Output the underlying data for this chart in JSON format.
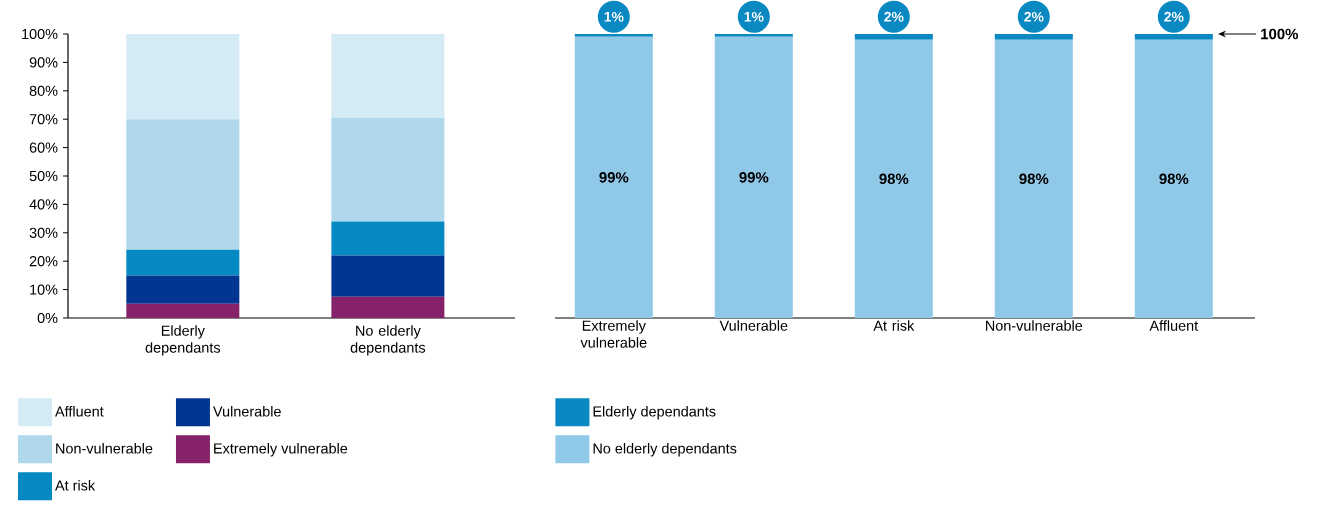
{
  "chart_data": [
    {
      "type": "bar",
      "stacked": true,
      "legend": "bottom",
      "categories": [
        "Elderly dependants",
        "No elderly dependants"
      ],
      "ylim": [
        0,
        100
      ],
      "yticks": [
        {
          "value": 0,
          "label": "0%"
        },
        {
          "value": 10,
          "label": "10%"
        },
        {
          "value": 20,
          "label": "20%"
        },
        {
          "value": 30,
          "label": "30%"
        },
        {
          "value": 40,
          "label": "40%"
        },
        {
          "value": 50,
          "label": "50%"
        },
        {
          "value": 60,
          "label": "60%"
        },
        {
          "value": 70,
          "label": "70%"
        },
        {
          "value": 80,
          "label": "80%"
        },
        {
          "value": 90,
          "label": "90%"
        },
        {
          "value": 100,
          "label": "100%"
        }
      ],
      "series": [
        {
          "name": "Extremely vulnerable",
          "color": "#86226a",
          "values": [
            5,
            7.5
          ]
        },
        {
          "name": "Vulnerable",
          "color": "#003591",
          "values": [
            10,
            14.5
          ]
        },
        {
          "name": "At risk",
          "color": "#0589c2",
          "values": [
            9,
            12
          ]
        },
        {
          "name": "Non-vulnerable",
          "color": "#afd8ec",
          "values": [
            46,
            36.5
          ]
        },
        {
          "name": "Affluent",
          "color": "#d4eaf5",
          "values": [
            30,
            29.5
          ]
        }
      ]
    },
    {
      "type": "bar",
      "stacked": true,
      "legend": "bottom",
      "tick_labels": "x",
      "categories": [
        "Extremely vulnerable",
        "Vulnerable",
        "At risk",
        "Non-vulnerable",
        "Affluent"
      ],
      "ylim": [
        0,
        100
      ],
      "series": [
        {
          "name": "No elderly dependants",
          "color": "#90c8e8",
          "values": [
            99,
            99,
            98,
            98,
            98
          ],
          "value_labels": [
            "99%",
            "99%",
            "98%",
            "98%",
            "98%"
          ]
        },
        {
          "name": "Elderly dependants",
          "color": "#0a88c2",
          "values": [
            1,
            1,
            2,
            2,
            2
          ],
          "value_labels": [
            "1%",
            "1%",
            "2%",
            "2%",
            "2%"
          ]
        }
      ],
      "annotations": [
        "100%"
      ]
    }
  ]
}
